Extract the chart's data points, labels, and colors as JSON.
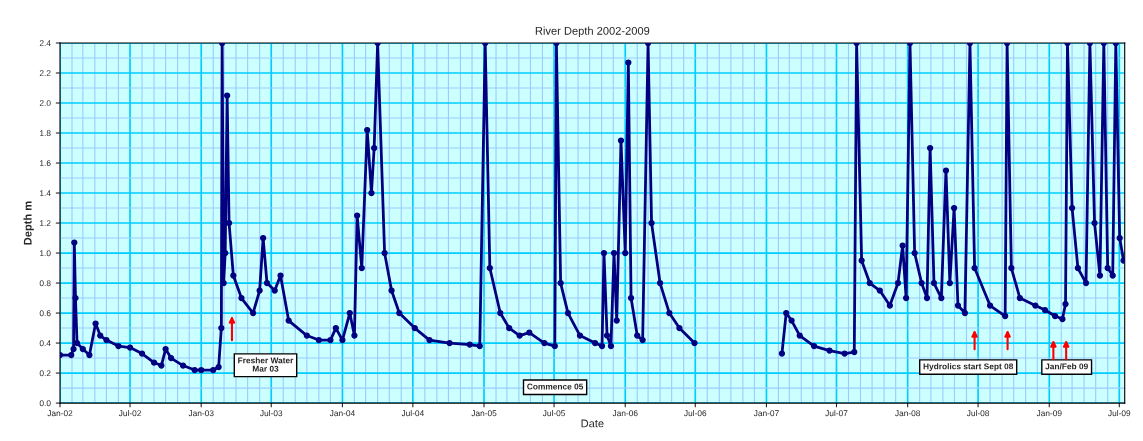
{
  "chart_data": {
    "type": "line",
    "title": "River Depth 2002-2009",
    "xlabel": "Date",
    "ylabel": "Depth m",
    "x": [
      "2002-01-01",
      "2002-01-30",
      "2002-02-05",
      "2002-02-07",
      "2002-02-10",
      "2002-02-14",
      "2002-03-01",
      "2002-03-18",
      "2002-04-03",
      "2002-04-15",
      "2002-05-01",
      "2002-06-01",
      "2002-07-01",
      "2002-08-01",
      "2002-09-01",
      "2002-09-20",
      "2002-10-01",
      "2002-10-15",
      "2002-11-15",
      "2002-12-15",
      "2003-01-01",
      "2003-02-01",
      "2003-02-15",
      "2003-02-22",
      "2003-02-24",
      "2003-02-28",
      "2003-03-04",
      "2003-03-09",
      "2003-03-14",
      "2003-03-25",
      "2003-04-15",
      "2003-05-15",
      "2003-06-01",
      "2003-06-10",
      "2003-06-20",
      "2003-07-10",
      "2003-07-25",
      "2003-08-15",
      "2003-10-01",
      "2003-11-01",
      "2003-12-01",
      "2003-12-15",
      "2004-01-01",
      "2004-01-20",
      "2004-02-01",
      "2004-02-08",
      "2004-02-20",
      "2004-03-05",
      "2004-03-16",
      "2004-03-23",
      "2004-04-01",
      "2004-04-19",
      "2004-05-07",
      "2004-05-27",
      "2004-07-06",
      "2004-08-13",
      "2004-10-04",
      "2004-11-25",
      "2004-12-21",
      "2005-01-04",
      "2005-01-16",
      "2005-02-12",
      "2005-03-07",
      "2005-04-03",
      "2005-04-28",
      "2005-06-06",
      "2005-07-03",
      "2005-07-07",
      "2005-07-18",
      "2005-08-06",
      "2005-09-06",
      "2005-10-15",
      "2005-11-02",
      "2005-11-07",
      "2005-11-15",
      "2005-11-25",
      "2005-12-03",
      "2005-12-10",
      "2005-12-21",
      "2006-01-01",
      "2006-01-09",
      "2006-01-16",
      "2006-02-01",
      "2006-02-15",
      "2006-03-01",
      "2006-03-10",
      "2006-04-01",
      "2006-04-25",
      "2006-05-21",
      "2006-06-29",
      "2006-10-15",
      "2007-02-10",
      "2007-02-21",
      "2007-03-07",
      "2007-03-28",
      "2007-05-04",
      "2007-06-13",
      "2007-07-22",
      "2007-08-16",
      "2007-08-22",
      "2007-09-04",
      "2007-09-25",
      "2007-10-21",
      "2007-11-16",
      "2007-12-07",
      "2007-12-19",
      "2007-12-28",
      "2008-01-07",
      "2008-01-19",
      "2008-02-06",
      "2008-02-20",
      "2008-02-28",
      "2008-03-09",
      "2008-03-28",
      "2008-04-09",
      "2008-04-19",
      "2008-04-30",
      "2008-05-10",
      "2008-05-28",
      "2008-06-10",
      "2008-06-22",
      "2008-08-01",
      "2008-09-09",
      "2008-09-14",
      "2008-09-25",
      "2008-10-17",
      "2008-11-26",
      "2008-12-21",
      "2009-01-16",
      "2009-02-04",
      "2009-02-12",
      "2009-02-17",
      "2009-03-01",
      "2009-03-16",
      "2009-04-06",
      "2009-04-16",
      "2009-04-28",
      "2009-05-12",
      "2009-05-22",
      "2009-06-01",
      "2009-06-14",
      "2009-06-22",
      "2009-07-02",
      "2009-07-12"
    ],
    "series": [
      {
        "color": "#000080",
        "values": [
          0.32,
          0.32,
          0.36,
          1.07,
          0.7,
          0.4,
          0.36,
          0.32,
          0.53,
          0.45,
          0.42,
          0.38,
          0.37,
          0.33,
          0.27,
          0.25,
          0.36,
          0.3,
          0.25,
          0.22,
          0.22,
          0.22,
          0.24,
          0.5,
          2.4,
          0.8,
          1.0,
          2.05,
          1.2,
          0.85,
          0.7,
          0.6,
          0.75,
          1.1,
          0.8,
          0.75,
          0.85,
          0.55,
          0.45,
          0.42,
          0.42,
          0.5,
          0.42,
          0.6,
          0.45,
          1.25,
          0.9,
          1.82,
          1.4,
          1.7,
          2.4,
          1.0,
          0.75,
          0.6,
          0.5,
          0.42,
          0.4,
          0.39,
          0.38,
          2.4,
          0.9,
          0.6,
          0.5,
          0.45,
          0.47,
          0.4,
          0.38,
          2.4,
          0.8,
          0.6,
          0.45,
          0.4,
          0.38,
          1.0,
          0.45,
          0.38,
          1.0,
          0.55,
          1.75,
          1.0,
          2.27,
          0.7,
          0.45,
          0.42,
          2.4,
          1.2,
          0.8,
          0.6,
          0.5,
          0.4,
          null,
          0.33,
          0.6,
          0.55,
          0.45,
          0.38,
          0.35,
          0.33,
          0.34,
          2.4,
          0.95,
          0.8,
          0.75,
          0.65,
          0.8,
          1.05,
          0.7,
          2.4,
          1.0,
          0.8,
          0.7,
          1.7,
          0.8,
          0.7,
          1.55,
          0.8,
          1.3,
          0.65,
          0.6,
          2.4,
          0.9,
          0.65,
          0.58,
          2.4,
          0.9,
          0.7,
          0.65,
          0.62,
          0.58,
          0.56,
          0.66,
          2.4,
          1.3,
          0.9,
          0.8,
          2.4,
          1.2,
          0.85,
          2.4,
          0.9,
          0.85,
          2.4,
          1.1,
          0.95
        ]
      }
    ],
    "xlim": [
      "2002-01-01",
      "2009-07-15"
    ],
    "xticks": [
      {
        "value": "2002-01-01",
        "label": "Jan-02"
      },
      {
        "value": "2002-02-01",
        "label": null
      },
      {
        "value": "2002-03-01",
        "label": null
      },
      {
        "value": "2002-04-01",
        "label": null
      },
      {
        "value": "2002-05-01",
        "label": null
      },
      {
        "value": "2002-06-01",
        "label": null
      },
      {
        "value": "2002-07-01",
        "label": "Jul-02"
      },
      {
        "value": "2002-08-01",
        "label": null
      },
      {
        "value": "2002-09-01",
        "label": null
      },
      {
        "value": "2002-10-01",
        "label": null
      },
      {
        "value": "2002-11-01",
        "label": null
      },
      {
        "value": "2002-12-01",
        "label": null
      },
      {
        "value": "2003-01-01",
        "label": "Jan-03"
      },
      {
        "value": "2003-02-01",
        "label": null
      },
      {
        "value": "2003-03-01",
        "label": null
      },
      {
        "value": "2003-04-01",
        "label": null
      },
      {
        "value": "2003-05-01",
        "label": null
      },
      {
        "value": "2003-06-01",
        "label": null
      },
      {
        "value": "2003-07-01",
        "label": "Jul-03"
      },
      {
        "value": "2003-08-01",
        "label": null
      },
      {
        "value": "2003-09-01",
        "label": null
      },
      {
        "value": "2003-10-01",
        "label": null
      },
      {
        "value": "2003-11-01",
        "label": null
      },
      {
        "value": "2003-12-01",
        "label": null
      },
      {
        "value": "2004-01-01",
        "label": "Jan-04"
      },
      {
        "value": "2004-02-01",
        "label": null
      },
      {
        "value": "2004-03-01",
        "label": null
      },
      {
        "value": "2004-04-01",
        "label": null
      },
      {
        "value": "2004-05-01",
        "label": null
      },
      {
        "value": "2004-06-01",
        "label": null
      },
      {
        "value": "2004-07-01",
        "label": "Jul-04"
      },
      {
        "value": "2004-08-01",
        "label": null
      },
      {
        "value": "2004-09-01",
        "label": null
      },
      {
        "value": "2004-10-01",
        "label": null
      },
      {
        "value": "2004-11-01",
        "label": null
      },
      {
        "value": "2004-12-01",
        "label": null
      },
      {
        "value": "2005-01-01",
        "label": "Jan-05"
      },
      {
        "value": "2005-02-01",
        "label": null
      },
      {
        "value": "2005-03-01",
        "label": null
      },
      {
        "value": "2005-04-01",
        "label": null
      },
      {
        "value": "2005-05-01",
        "label": null
      },
      {
        "value": "2005-06-01",
        "label": null
      },
      {
        "value": "2005-07-01",
        "label": "Jul-05"
      },
      {
        "value": "2005-08-01",
        "label": null
      },
      {
        "value": "2005-09-01",
        "label": null
      },
      {
        "value": "2005-10-01",
        "label": null
      },
      {
        "value": "2005-11-01",
        "label": null
      },
      {
        "value": "2005-12-01",
        "label": null
      },
      {
        "value": "2006-01-01",
        "label": "Jan-06"
      },
      {
        "value": "2006-02-01",
        "label": null
      },
      {
        "value": "2006-03-01",
        "label": null
      },
      {
        "value": "2006-04-01",
        "label": null
      },
      {
        "value": "2006-05-01",
        "label": null
      },
      {
        "value": "2006-06-01",
        "label": null
      },
      {
        "value": "2006-07-01",
        "label": "Jul-06"
      },
      {
        "value": "2006-08-01",
        "label": null
      },
      {
        "value": "2006-09-01",
        "label": null
      },
      {
        "value": "2006-10-01",
        "label": null
      },
      {
        "value": "2006-11-01",
        "label": null
      },
      {
        "value": "2006-12-01",
        "label": null
      },
      {
        "value": "2007-01-01",
        "label": "Jan-07"
      },
      {
        "value": "2007-02-01",
        "label": null
      },
      {
        "value": "2007-03-01",
        "label": null
      },
      {
        "value": "2007-04-01",
        "label": null
      },
      {
        "value": "2007-05-01",
        "label": null
      },
      {
        "value": "2007-06-01",
        "label": null
      },
      {
        "value": "2007-07-01",
        "label": "Jul-07"
      },
      {
        "value": "2007-08-01",
        "label": null
      },
      {
        "value": "2007-09-01",
        "label": null
      },
      {
        "value": "2007-10-01",
        "label": null
      },
      {
        "value": "2007-11-01",
        "label": null
      },
      {
        "value": "2007-12-01",
        "label": null
      },
      {
        "value": "2008-01-01",
        "label": "Jan-08"
      },
      {
        "value": "2008-02-01",
        "label": null
      },
      {
        "value": "2008-03-01",
        "label": null
      },
      {
        "value": "2008-04-01",
        "label": null
      },
      {
        "value": "2008-05-01",
        "label": null
      },
      {
        "value": "2008-06-01",
        "label": null
      },
      {
        "value": "2008-07-01",
        "label": "Jul-08"
      },
      {
        "value": "2008-08-01",
        "label": null
      },
      {
        "value": "2008-09-01",
        "label": null
      },
      {
        "value": "2008-10-01",
        "label": null
      },
      {
        "value": "2008-11-01",
        "label": null
      },
      {
        "value": "2008-12-01",
        "label": null
      },
      {
        "value": "2009-01-01",
        "label": "Jan-09"
      },
      {
        "value": "2009-02-01",
        "label": null
      },
      {
        "value": "2009-03-01",
        "label": null
      },
      {
        "value": "2009-04-01",
        "label": null
      },
      {
        "value": "2009-05-01",
        "label": null
      },
      {
        "value": "2009-06-01",
        "label": null
      },
      {
        "value": "2009-07-01",
        "label": "Jul-09"
      }
    ],
    "ylim": [
      0,
      2.4
    ],
    "yticks": [
      {
        "value": 0,
        "label": "0.0"
      },
      {
        "value": 0.1,
        "label": null
      },
      0.2,
      {
        "value": 0.3,
        "label": null
      },
      0.4,
      {
        "value": 0.5,
        "label": null
      },
      0.6,
      {
        "value": 0.7,
        "label": null
      },
      0.8,
      {
        "value": 0.9,
        "label": null
      },
      {
        "value": 1,
        "label": "1.0"
      },
      {
        "value": 1.1,
        "label": null
      },
      1.2,
      {
        "value": 1.3,
        "label": null
      },
      1.4,
      {
        "value": 1.5,
        "label": null
      },
      1.6,
      {
        "value": 1.7,
        "label": null
      },
      1.8,
      {
        "value": 1.9,
        "label": null
      },
      {
        "value": 2,
        "label": "2.0"
      },
      {
        "value": 2.1,
        "label": null
      },
      2.2,
      {
        "value": 2.3,
        "label": null
      },
      2.4
    ],
    "grid": true,
    "marker": "circle",
    "line_style": "solid",
    "annotations": [
      "Fresher Water\nMar 03",
      "Commence 05",
      "Hydrolics start Sept 08",
      "Jan/Feb 09"
    ]
  }
}
